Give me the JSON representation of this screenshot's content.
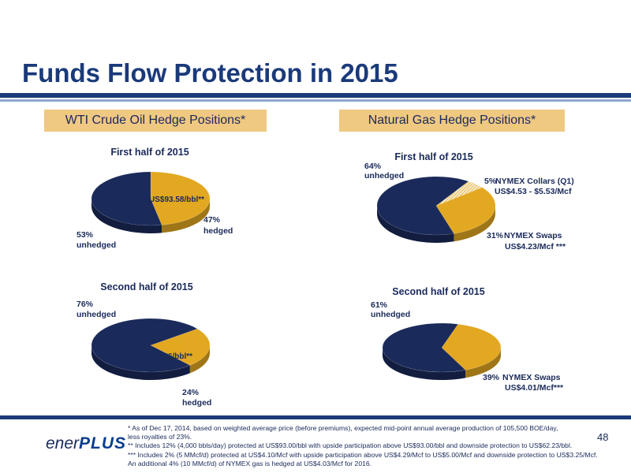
{
  "header": {
    "title": "Funds Flow Protection in 2015"
  },
  "panels": {
    "oil_title": "WTI Crude Oil Hedge Positions*",
    "gas_title": "Natural Gas Hedge Positions*"
  },
  "colors": {
    "navy": "#1a2a5a",
    "gold": "#e3a821",
    "brand": "#1a3a7a",
    "header_bg": "#efc882"
  },
  "chart_data": [
    {
      "type": "pie",
      "title": "First half of 2015",
      "slices": [
        {
          "pct": "47%",
          "value": 47,
          "label": "hedged",
          "color": "#e3a821",
          "detail": "US$93.58/bbl**"
        },
        {
          "pct": "53%",
          "value": 53,
          "label": "unhedged",
          "color": "#1a2a5a"
        }
      ]
    },
    {
      "type": "pie",
      "title": "Second half of 2015",
      "slices": [
        {
          "pct": "24%",
          "value": 24,
          "label": "hedged",
          "color": "#e3a821",
          "detail": "US$93.86/bbl**"
        },
        {
          "pct": "76%",
          "value": 76,
          "label": "unhedged",
          "color": "#1a2a5a"
        }
      ]
    },
    {
      "type": "pie",
      "title": "First half of 2015",
      "slices": [
        {
          "pct": "5%",
          "value": 5,
          "label": "NYMEX Collars (Q1)",
          "color": "#f3e6c2",
          "detail": "US$4.53 - $5.53/Mcf"
        },
        {
          "pct": "31%",
          "value": 31,
          "label": "NYMEX Swaps",
          "color": "#e3a821",
          "detail": "US$4.23/Mcf ***"
        },
        {
          "pct": "64%",
          "value": 64,
          "label": "unhedged",
          "color": "#1a2a5a"
        }
      ]
    },
    {
      "type": "pie",
      "title": "Second half of 2015",
      "slices": [
        {
          "pct": "39%",
          "value": 39,
          "label": "NYMEX Swaps",
          "color": "#e3a821",
          "detail": "US$4.01/Mcf***"
        },
        {
          "pct": "61%",
          "value": 61,
          "label": "unhedged",
          "color": "#1a2a5a"
        }
      ]
    }
  ],
  "footer": {
    "logo_left": "ener",
    "logo_right": "PLUS",
    "page_number": "48",
    "notes": [
      "* As of Dec 17, 2014, based on weighted average price (before premiums), expected mid-point annual average  production of 105,500 BOE/day,",
      " less royalties of 23%.",
      "** Includes 12% (4,000 bbls/day) protected at US$93.00/bbl with upside participation above US$93.00/bbl and downside protection to US$62.23/bbl.",
      "*** Includes 2% (5 MMcf/d) protected at US$4.10/Mcf with upside participation above US$4.29/Mcf to US$5.00/Mcf and downside protection to US$3.25/Mcf.",
      "An additional 4% (10 MMcf/d) of NYMEX gas is hedged at US$4.03/Mcf for 2016."
    ]
  }
}
